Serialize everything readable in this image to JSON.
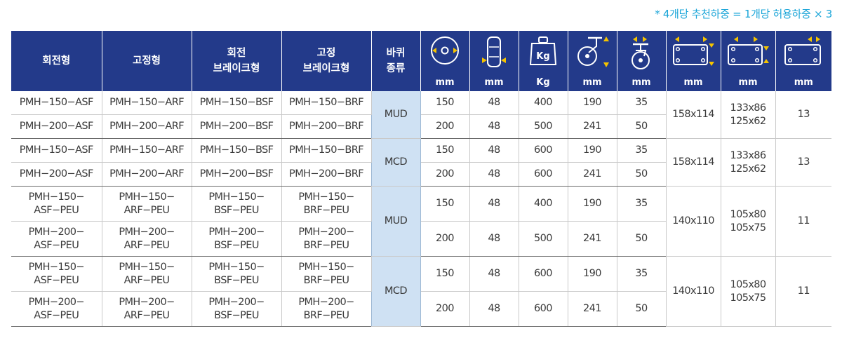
{
  "note": "* 4개당 추천하중 = 1개당 허용하중 × 3",
  "headers": {
    "swivel": "회전형",
    "fixed": "고정형",
    "swivel_brake_l1": "회전",
    "swivel_brake_l2": "브레이크형",
    "fixed_brake_l1": "고정",
    "fixed_brake_l2": "브레이크형",
    "wheel_type_l1": "바퀴",
    "wheel_type_l2": "종류",
    "units": {
      "diameter": "mm",
      "width": "mm",
      "load": "Kg",
      "height": "mm",
      "offset": "mm",
      "plate": "mm",
      "hole_pitch": "mm",
      "bolt": "mm"
    },
    "icons": {
      "diameter": "wheel-diameter-icon",
      "width": "wheel-width-icon",
      "load": "weight-kg-icon",
      "height": "caster-height-icon",
      "offset": "caster-offset-icon",
      "plate": "plate-size-icon",
      "hole_pitch": "hole-pitch-icon",
      "bolt": "bolt-hole-icon"
    },
    "kg_label": "Kg"
  },
  "groups": [
    {
      "wheel": "MUD",
      "plate": "158x114",
      "pitch_1": "133x86",
      "pitch_2": "125x62",
      "bolt": "13",
      "rows": [
        {
          "swivel": "PMH−150−ASF",
          "fixed": "PMH−150−ARF",
          "swivel_brake": "PMH−150−BSF",
          "fixed_brake": "PMH−150−BRF",
          "diameter": "150",
          "width": "48",
          "load": "400",
          "height": "190",
          "offset": "35"
        },
        {
          "swivel": "PMH−200−ASF",
          "fixed": "PMH−200−ARF",
          "swivel_brake": "PMH−200−BSF",
          "fixed_brake": "PMH−200−BRF",
          "diameter": "200",
          "width": "48",
          "load": "500",
          "height": "241",
          "offset": "50"
        }
      ]
    },
    {
      "wheel": "MCD",
      "plate": "158x114",
      "pitch_1": "133x86",
      "pitch_2": "125x62",
      "bolt": "13",
      "rows": [
        {
          "swivel": "PMH−150−ASF",
          "fixed": "PMH−150−ARF",
          "swivel_brake": "PMH−150−BSF",
          "fixed_brake": "PMH−150−BRF",
          "diameter": "150",
          "width": "48",
          "load": "600",
          "height": "190",
          "offset": "35"
        },
        {
          "swivel": "PMH−200−ASF",
          "fixed": "PMH−200−ARF",
          "swivel_brake": "PMH−200−BSF",
          "fixed_brake": "PMH−200−BRF",
          "diameter": "200",
          "width": "48",
          "load": "600",
          "height": "241",
          "offset": "50"
        }
      ]
    },
    {
      "wheel": "MUD",
      "plate": "140x110",
      "pitch_1": "105x80",
      "pitch_2": "105x75",
      "bolt": "11",
      "rows": [
        {
          "swivel_1": "PMH−150−",
          "swivel_2": "ASF−PEU",
          "fixed_1": "PMH−150−",
          "fixed_2": "ARF−PEU",
          "swivel_brake_1": "PMH−150−",
          "swivel_brake_2": "BSF−PEU",
          "fixed_brake_1": "PMH−150−",
          "fixed_brake_2": "BRF−PEU",
          "diameter": "150",
          "width": "48",
          "load": "400",
          "height": "190",
          "offset": "35"
        },
        {
          "swivel_1": "PMH−200−",
          "swivel_2": "ASF−PEU",
          "fixed_1": "PMH−200−",
          "fixed_2": "ARF−PEU",
          "swivel_brake_1": "PMH−200−",
          "swivel_brake_2": "BSF−PEU",
          "fixed_brake_1": "PMH−200−",
          "fixed_brake_2": "BRF−PEU",
          "diameter": "200",
          "width": "48",
          "load": "500",
          "height": "241",
          "offset": "50"
        }
      ]
    },
    {
      "wheel": "MCD",
      "plate": "140x110",
      "pitch_1": "105x80",
      "pitch_2": "105x75",
      "bolt": "11",
      "rows": [
        {
          "swivel_1": "PMH−150−",
          "swivel_2": "ASF−PEU",
          "fixed_1": "PMH−150−",
          "fixed_2": "ARF−PEU",
          "swivel_brake_1": "PMH−150−",
          "swivel_brake_2": "BSF−PEU",
          "fixed_brake_1": "PMH−150−",
          "fixed_brake_2": "BRF−PEU",
          "diameter": "150",
          "width": "48",
          "load": "600",
          "height": "190",
          "offset": "35"
        },
        {
          "swivel_1": "PMH−200−",
          "swivel_2": "ASF−PEU",
          "fixed_1": "PMH−200−",
          "fixed_2": "ARF−PEU",
          "swivel_brake_1": "PMH−200−",
          "swivel_brake_2": "BSF−PEU",
          "fixed_brake_1": "PMH−200−",
          "fixed_brake_2": "BRF−PEU",
          "diameter": "200",
          "width": "48",
          "load": "600",
          "height": "241",
          "offset": "50"
        }
      ]
    }
  ],
  "colors": {
    "header_bg": "#233a8a",
    "accent_yellow": "#f4c300",
    "note_blue": "#1aa5d8",
    "wheel_type_bg": "#cfe1f3"
  }
}
